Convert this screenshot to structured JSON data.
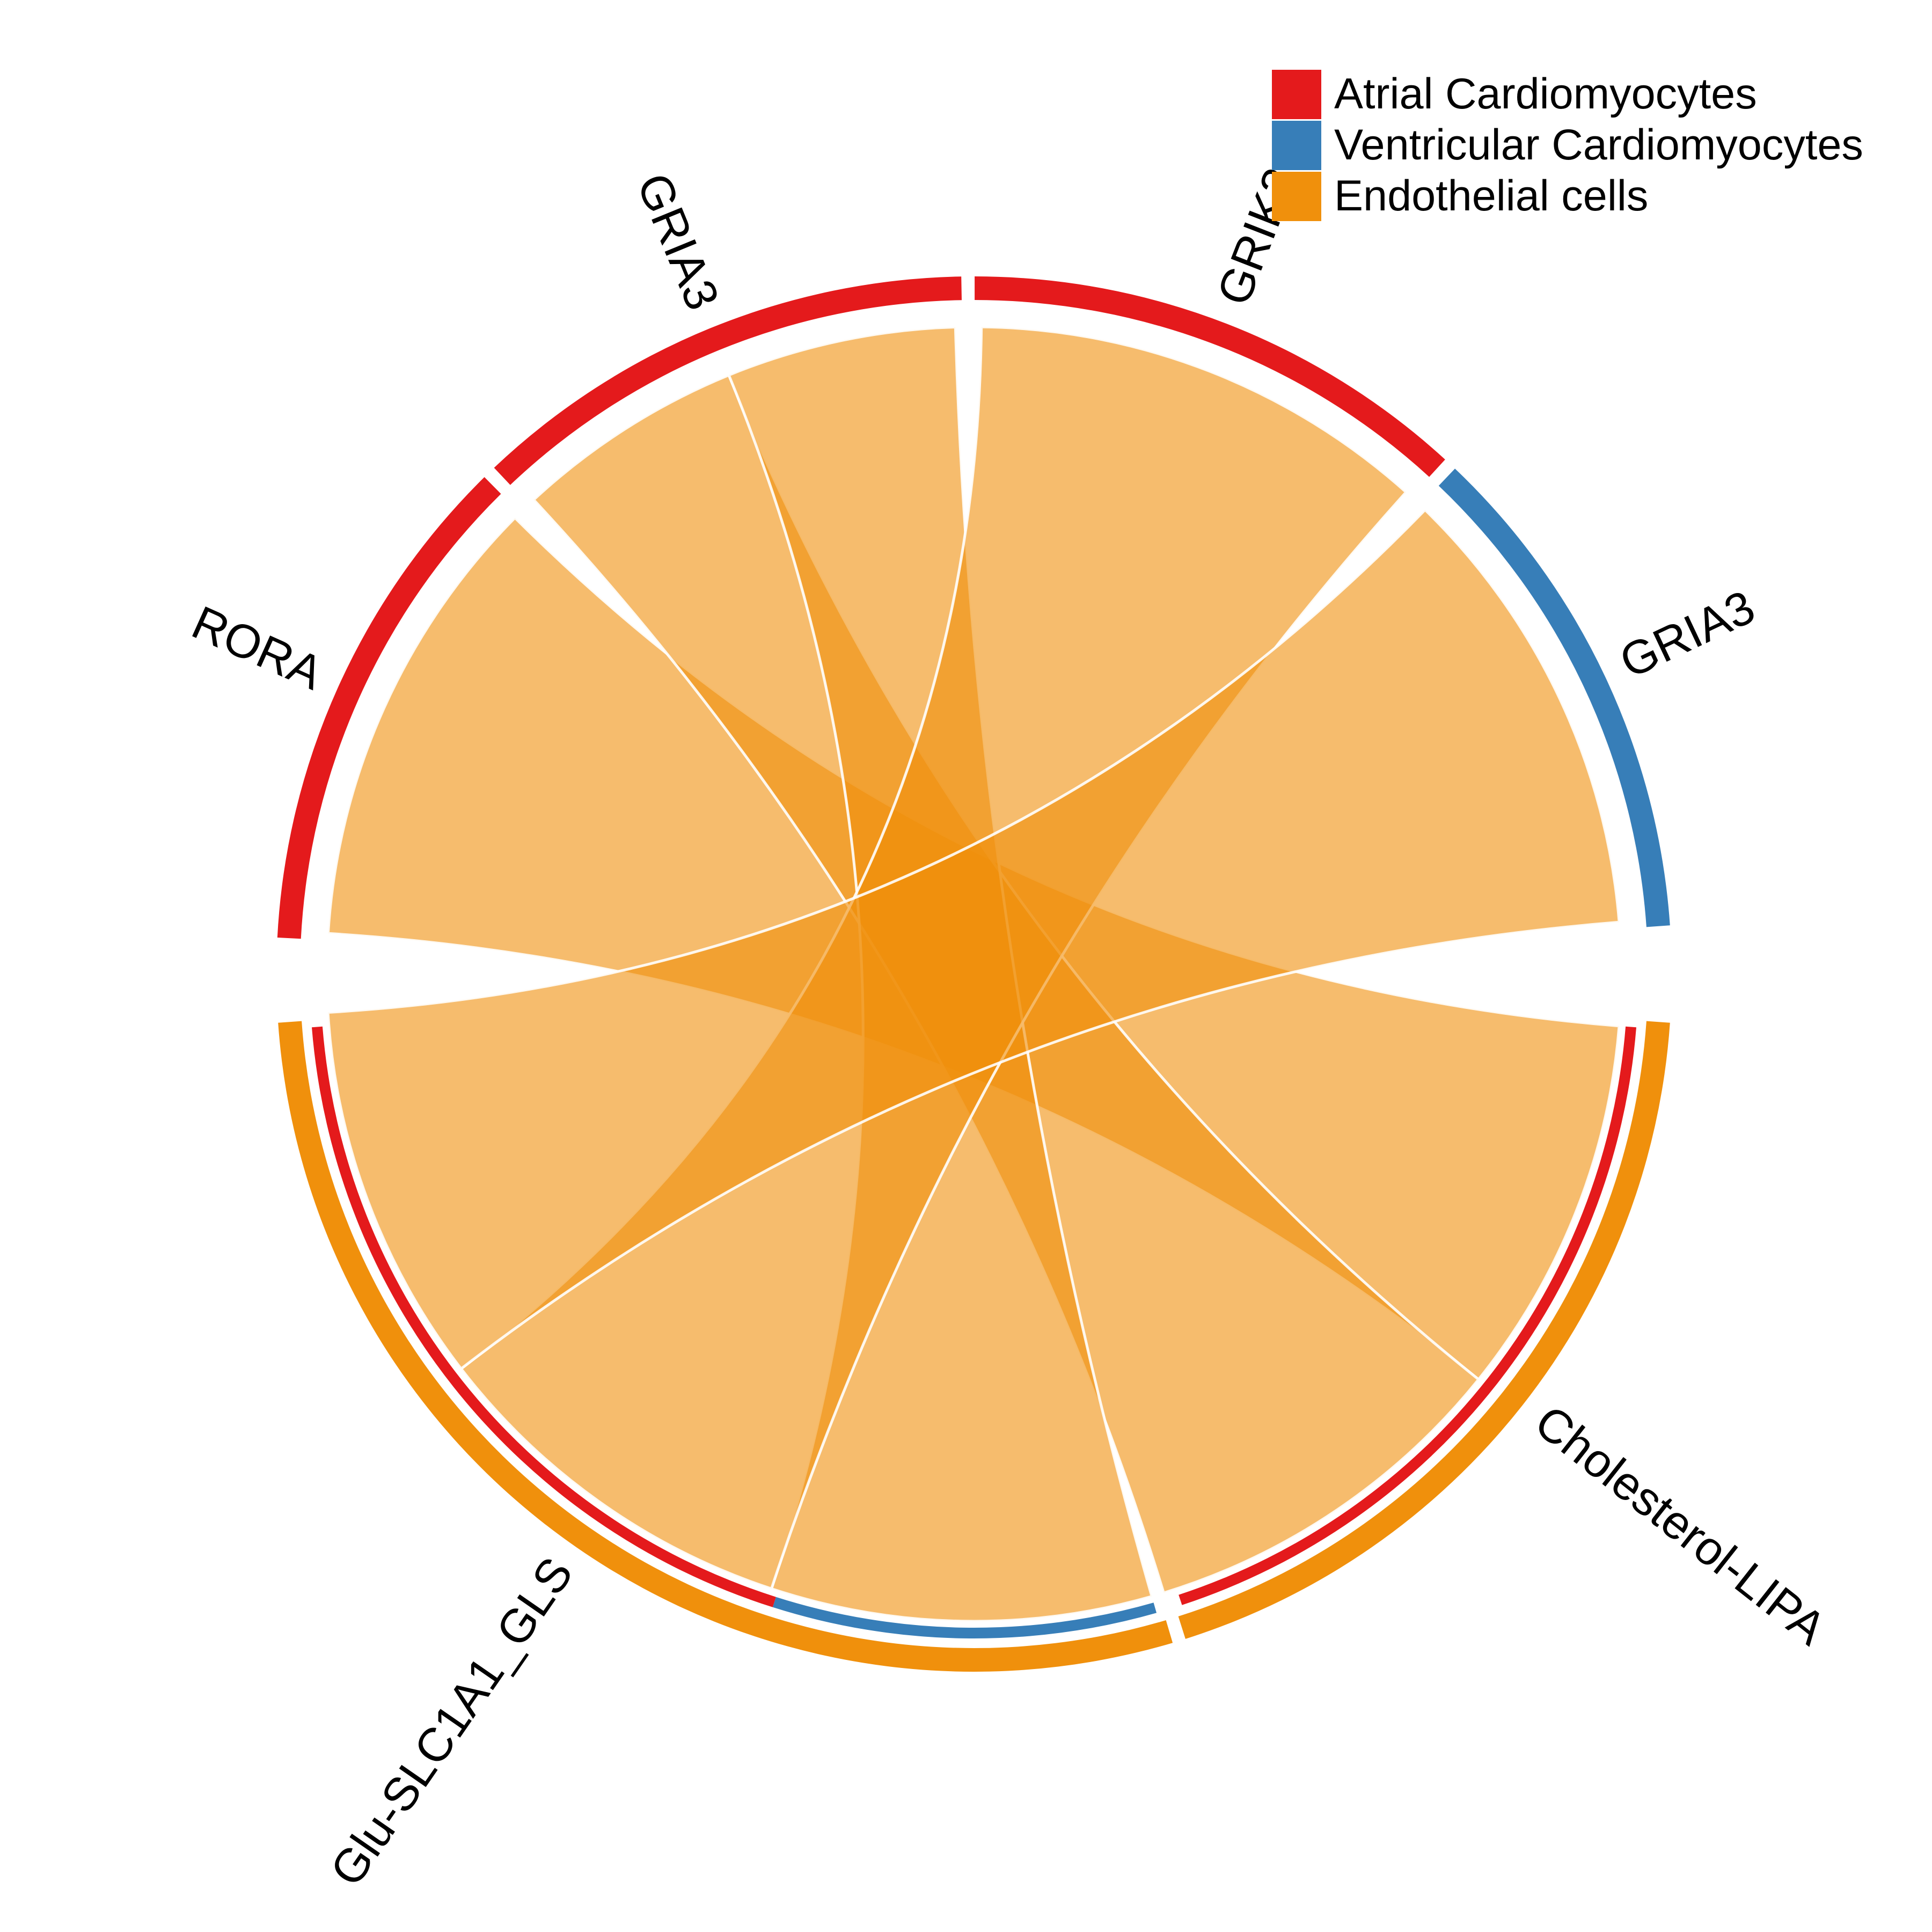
{
  "legend": {
    "position": "top-right",
    "items": [
      {
        "label": "Atrial Cardiomyocytes",
        "color": "#E41A1C"
      },
      {
        "label": "Ventricular Cardiomyocytes",
        "color": "#377EB8"
      },
      {
        "label": "Endothelial cells",
        "color": "#F0900C"
      }
    ]
  },
  "chart_data": {
    "type": "chord",
    "sectors": [
      {
        "label": "RORA",
        "cell_type": "Atrial Cardiomyocytes",
        "color": "#E41A1C",
        "role": "receptor",
        "width": 1
      },
      {
        "label": "GRIA3",
        "cell_type": "Atrial Cardiomyocytes",
        "color": "#E41A1C",
        "role": "receptor",
        "width": 1
      },
      {
        "label": "GRIK2",
        "cell_type": "Atrial Cardiomyocytes",
        "color": "#E41A1C",
        "role": "receptor",
        "width": 1
      },
      {
        "label": "GRIA3",
        "cell_type": "Ventricular Cardiomyocytes",
        "color": "#377EB8",
        "role": "receptor",
        "width": 1
      },
      {
        "label": "Cholesterol-LIPA",
        "cell_type": "Endothelial cells",
        "color": "#F0900C",
        "role": "ligand",
        "width": 2,
        "target_bands": [
          {
            "color": "#E41A1C",
            "width": 2
          }
        ]
      },
      {
        "label": "Glu-SLC1A1_GLS",
        "cell_type": "Endothelial cells",
        "color": "#F0900C",
        "role": "ligand",
        "width": 3,
        "target_bands": [
          {
            "color": "#377EB8",
            "width": 1
          },
          {
            "color": "#E41A1C",
            "width": 2
          }
        ]
      }
    ],
    "links": [
      {
        "source": "Cholesterol-LIPA",
        "target": "RORA",
        "target_index": 0,
        "value": 1
      },
      {
        "source": "Cholesterol-LIPA",
        "target": "GRIA3",
        "target_index": 1,
        "value": 1
      },
      {
        "source": "Glu-SLC1A1_GLS",
        "target": "GRIA3",
        "target_index": 1,
        "value": 1
      },
      {
        "source": "Glu-SLC1A1_GLS",
        "target": "GRIK2",
        "target_index": 2,
        "value": 1
      },
      {
        "source": "Glu-SLC1A1_GLS",
        "target": "GRIA3",
        "target_index": 3,
        "value": 1
      }
    ],
    "link_color": "#F0900C"
  }
}
